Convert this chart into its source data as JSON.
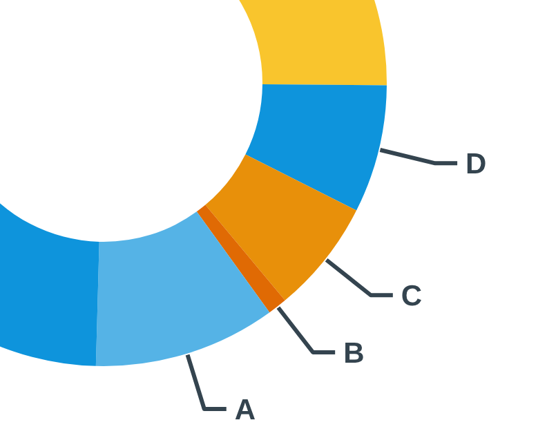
{
  "chart_data": {
    "type": "donut",
    "categories": [
      null,
      "D",
      "C",
      "B",
      "A",
      null
    ],
    "values": [
      16.8,
      7.3,
      6.5,
      1.1,
      10.4,
      57.9
    ],
    "colors": [
      "#f9c52d",
      "#0e94dc",
      "#e8900a",
      "#e06a04",
      "#55b3e6",
      "#0e94dc"
    ]
  }
}
